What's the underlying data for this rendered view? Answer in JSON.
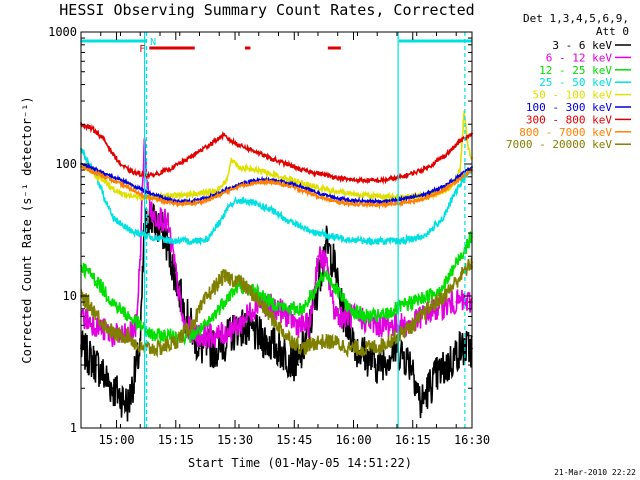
{
  "chart_data": {
    "type": "line",
    "title": "HESSI Observing Summary Count Rates, Corrected",
    "xlabel": "Start Time (01-May-05 14:51:22)",
    "ylabel": "Corrected Count Rate (s⁻¹ detector⁻¹)",
    "y_scale": "log",
    "xlim": [
      0,
      99
    ],
    "ylim": [
      1,
      1000
    ],
    "x_ticks": [
      {
        "value": 9,
        "label": "15:00"
      },
      {
        "value": 24,
        "label": "15:15"
      },
      {
        "value": 39,
        "label": "15:30"
      },
      {
        "value": 54,
        "label": "15:45"
      },
      {
        "value": 69,
        "label": "16:00"
      },
      {
        "value": 84,
        "label": "16:15"
      },
      {
        "value": 99,
        "label": "16:30"
      }
    ],
    "y_ticks": [
      {
        "value": 1,
        "label": "1"
      },
      {
        "value": 10,
        "label": "10"
      },
      {
        "value": 100,
        "label": "100"
      },
      {
        "value": 1000,
        "label": "1000"
      }
    ],
    "legend_title": [
      "Det 1,3,4,5,6,9,",
      "Att 0"
    ],
    "legend_placement": "right",
    "series": [
      {
        "name": "3 - 6 keV",
        "color": "#000000",
        "x": [
          0,
          4,
          8,
          12,
          15,
          16,
          17,
          19,
          21,
          23,
          26,
          30,
          35,
          40,
          45,
          50,
          55,
          58,
          60,
          62,
          64,
          66,
          70,
          75,
          80,
          84,
          86,
          88,
          90,
          93,
          96,
          99
        ],
        "values": [
          4,
          3,
          2,
          1.5,
          4,
          30,
          40,
          35,
          30,
          18,
          8,
          4,
          4,
          6,
          5,
          4,
          3,
          6,
          12,
          25,
          18,
          8,
          4,
          3,
          4,
          3,
          1.5,
          2,
          2.5,
          3,
          4,
          4
        ]
      },
      {
        "name": "6 - 12 keV",
        "color": "#e000e0",
        "x": [
          0,
          4,
          8,
          12,
          14,
          15,
          16,
          17,
          18,
          20,
          22,
          24,
          26,
          30,
          35,
          40,
          45,
          50,
          55,
          58,
          60,
          62,
          64,
          66,
          70,
          75,
          80,
          84,
          86,
          90,
          95,
          99
        ],
        "values": [
          7,
          6,
          5,
          5,
          6,
          20,
          150,
          60,
          40,
          40,
          35,
          15,
          6,
          5,
          5,
          6,
          9,
          8,
          6,
          6,
          20,
          18,
          8,
          7,
          7,
          6,
          6,
          6,
          7,
          8,
          9,
          9
        ]
      },
      {
        "name": "12 - 25 keV",
        "color": "#00e000",
        "x": [
          0,
          4,
          8,
          12,
          15,
          18,
          20,
          24,
          28,
          32,
          36,
          40,
          44,
          48,
          52,
          56,
          60,
          62,
          64,
          68,
          72,
          76,
          80,
          84,
          88,
          92,
          96,
          99
        ],
        "values": [
          17,
          13,
          9,
          7,
          6,
          5,
          5,
          5,
          5,
          6,
          9,
          12,
          11,
          9,
          8,
          8,
          12,
          15,
          12,
          8,
          7,
          7,
          8,
          9,
          10,
          12,
          20,
          28
        ]
      },
      {
        "name": "25 - 50 keV",
        "color": "#00e0e0",
        "x": [
          0,
          2,
          4,
          6,
          8,
          10,
          12,
          14,
          16,
          18,
          20,
          24,
          28,
          32,
          36,
          38,
          40,
          42,
          44,
          48,
          52,
          56,
          60,
          64,
          68,
          72,
          76,
          80,
          84,
          86,
          88,
          90,
          92,
          94,
          96,
          98,
          99
        ],
        "values": [
          130,
          100,
          80,
          55,
          40,
          35,
          32,
          30,
          29,
          28,
          27,
          26,
          26,
          27,
          40,
          50,
          53,
          52,
          50,
          45,
          38,
          33,
          30,
          28,
          27,
          26,
          26,
          26,
          27,
          28,
          30,
          35,
          40,
          55,
          70,
          85,
          90
        ]
      },
      {
        "name": "50 - 100 keV",
        "color": "#e0e000",
        "x": [
          0,
          2,
          4,
          6,
          8,
          10,
          14,
          18,
          22,
          26,
          30,
          34,
          37,
          38,
          40,
          44,
          48,
          52,
          56,
          60,
          64,
          68,
          72,
          76,
          80,
          84,
          88,
          90,
          92,
          94,
          96,
          97,
          98,
          99
        ],
        "values": [
          100,
          90,
          80,
          75,
          65,
          60,
          56,
          56,
          57,
          58,
          60,
          62,
          75,
          110,
          95,
          90,
          85,
          78,
          72,
          66,
          62,
          60,
          58,
          57,
          56,
          57,
          58,
          60,
          62,
          68,
          90,
          250,
          130,
          110
        ]
      },
      {
        "name": "100 - 300 keV",
        "color": "#0000e0",
        "x": [
          0,
          4,
          8,
          12,
          16,
          20,
          24,
          28,
          32,
          36,
          40,
          44,
          48,
          52,
          56,
          60,
          64,
          68,
          72,
          76,
          80,
          84,
          88,
          92,
          96,
          99
        ],
        "values": [
          100,
          90,
          80,
          72,
          62,
          57,
          52,
          52,
          55,
          62,
          70,
          75,
          76,
          72,
          67,
          60,
          56,
          53,
          52,
          52,
          53,
          56,
          60,
          68,
          82,
          95
        ]
      },
      {
        "name": "300 - 800 keV",
        "color": "#e00000",
        "x": [
          0,
          2,
          4,
          6,
          8,
          10,
          12,
          14,
          18,
          22,
          26,
          30,
          34,
          36,
          38,
          40,
          44,
          48,
          52,
          56,
          60,
          64,
          68,
          72,
          76,
          80,
          84,
          88,
          90,
          92,
          94,
          96,
          98,
          99
        ],
        "values": [
          200,
          190,
          175,
          150,
          120,
          100,
          90,
          85,
          82,
          90,
          105,
          125,
          150,
          165,
          150,
          140,
          125,
          110,
          100,
          90,
          85,
          80,
          76,
          75,
          75,
          78,
          85,
          95,
          105,
          115,
          130,
          150,
          160,
          170
        ]
      },
      {
        "name": "800 - 7000 keV",
        "color": "#ff8000",
        "x": [
          0,
          4,
          8,
          12,
          16,
          20,
          24,
          28,
          32,
          36,
          40,
          44,
          48,
          52,
          56,
          60,
          64,
          68,
          72,
          76,
          80,
          84,
          88,
          92,
          96,
          99
        ],
        "values": [
          95,
          85,
          75,
          66,
          57,
          53,
          50,
          50,
          53,
          60,
          68,
          72,
          73,
          69,
          63,
          57,
          52,
          50,
          49,
          49,
          50,
          52,
          56,
          64,
          78,
          90
        ]
      },
      {
        "name": "7000 - 20000 keV",
        "color": "#808000",
        "x": [
          0,
          3,
          6,
          9,
          12,
          15,
          18,
          20,
          24,
          28,
          32,
          36,
          40,
          44,
          48,
          52,
          56,
          60,
          64,
          68,
          72,
          76,
          80,
          84,
          88,
          92,
          96,
          99
        ],
        "values": [
          10,
          8,
          6,
          5,
          5,
          4,
          4,
          4,
          4.5,
          6,
          10,
          14,
          13,
          10,
          7,
          5,
          4,
          4.5,
          4.5,
          4,
          4,
          4.2,
          5,
          6,
          8,
          10,
          14,
          18
        ]
      }
    ],
    "vlines": [
      {
        "x": 16.1,
        "color": "#00e0e0",
        "style": "solid"
      },
      {
        "x": 16.6,
        "color": "#00e0e0",
        "style": "dashed"
      },
      {
        "x": 80.3,
        "color": "#00e0e0",
        "style": "solid"
      },
      {
        "x": 97.2,
        "color": "#00e0e0",
        "style": "dashed"
      }
    ],
    "flags": [
      {
        "label": "N",
        "color": "#00e0e0",
        "segments": [
          [
            0,
            16.5
          ],
          [
            80.5,
            99
          ]
        ]
      },
      {
        "label": "F",
        "color": "#e00000",
        "segments": [
          [
            17.3,
            28.8
          ],
          [
            41.5,
            42.9
          ],
          [
            62.5,
            65.8
          ]
        ]
      }
    ],
    "grid": false
  },
  "timestamp": "21-Mar-2010 22:22"
}
